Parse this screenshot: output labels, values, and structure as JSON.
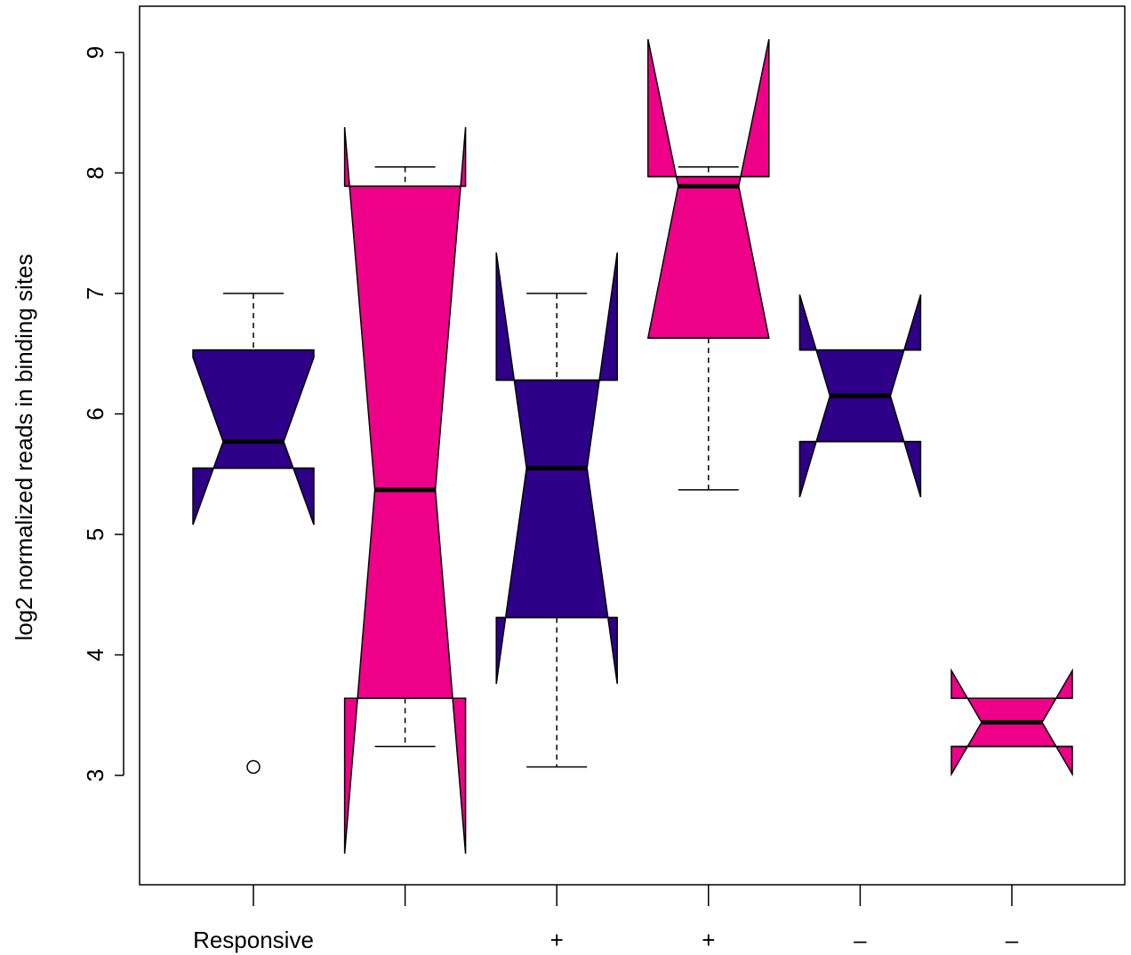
{
  "chart_data": {
    "type": "boxplot",
    "title": "",
    "xlabel": "",
    "ylabel": "log2 normalized reads in binding sites",
    "ylim": [
      2.0,
      9.5
    ],
    "y_ticks": [
      3,
      4,
      5,
      6,
      7,
      8,
      9
    ],
    "y_tick_labels": [
      "3",
      "4",
      "5",
      "6",
      "7",
      "8",
      "9"
    ],
    "notched": true,
    "categories": [
      "Responsive",
      "",
      "+",
      "+",
      "–",
      "–"
    ],
    "boxes": [
      {
        "label": "Responsive",
        "color": "#2E0087",
        "whisker_low": null,
        "q1": 5.55,
        "median": 5.77,
        "q3": 6.53,
        "whisker_high": 7.0,
        "notch_low": 5.08,
        "notch_high": 6.47,
        "outliers": [
          3.07
        ]
      },
      {
        "label": "",
        "color": "#EE0088",
        "whisker_low": 3.24,
        "q1": 3.64,
        "median": 5.37,
        "q3": 7.89,
        "whisker_high": 8.05,
        "notch_low": 2.35,
        "notch_high": 8.38,
        "outliers": []
      },
      {
        "label": "+",
        "color": "#2E0087",
        "whisker_low": 3.07,
        "q1": 4.31,
        "median": 5.55,
        "q3": 6.28,
        "whisker_high": 7.0,
        "notch_low": 3.76,
        "notch_high": 7.34,
        "outliers": []
      },
      {
        "label": "+",
        "color": "#EE0088",
        "whisker_low": 5.37,
        "q1": 6.63,
        "median": 7.89,
        "q3": 7.97,
        "whisker_high": 8.05,
        "notch_low": 6.63,
        "notch_high": 9.11,
        "outliers": []
      },
      {
        "label": "–",
        "color": "#2E0087",
        "whisker_low": null,
        "q1": 5.77,
        "median": 6.15,
        "q3": 6.53,
        "whisker_high": null,
        "notch_low": 5.31,
        "notch_high": 6.99,
        "outliers": []
      },
      {
        "label": "–",
        "color": "#EE0088",
        "whisker_low": null,
        "q1": 3.24,
        "median": 3.44,
        "q3": 3.64,
        "whisker_high": null,
        "notch_low": 3.01,
        "notch_high": 3.87,
        "outliers": []
      }
    ]
  }
}
